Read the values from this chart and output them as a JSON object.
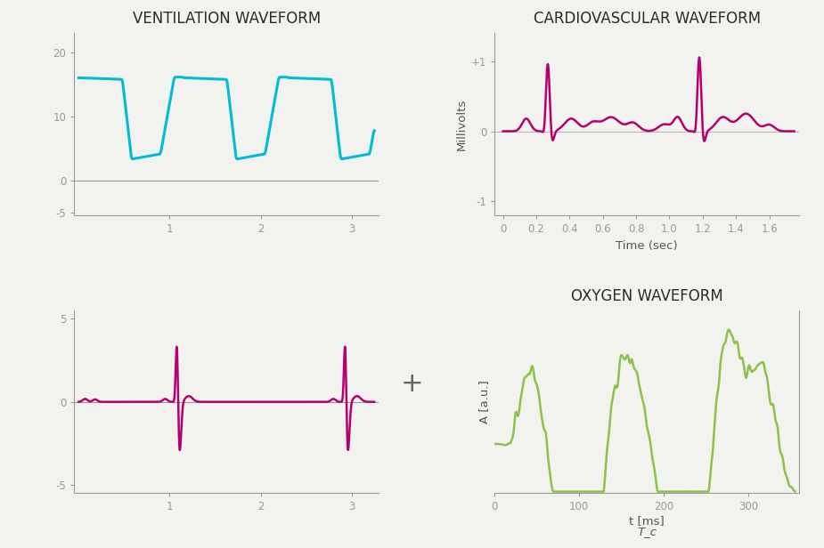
{
  "bg_color": "#f2f2ee",
  "vent_title": "VENTILATION WAVEFORM",
  "vent_color": "#00bcd4",
  "vent_ylim": [
    -5.5,
    23
  ],
  "vent_xlim": [
    -0.05,
    3.3
  ],
  "vent_yticks": [
    -5,
    0,
    10,
    20
  ],
  "vent_xticks": [
    1,
    2,
    3
  ],
  "cardio_title": "CARDIOVASCULAR WAVEFORM",
  "cardio_color": "#b5006e",
  "cardio_ylim": [
    -1.2,
    1.4
  ],
  "cardio_xlim": [
    -0.05,
    1.78
  ],
  "cardio_yticks": [
    -1,
    0,
    1
  ],
  "cardio_ytick_labels": [
    "-1",
    "0",
    "+1"
  ],
  "cardio_xticks": [
    0,
    0.2,
    0.4,
    0.6,
    0.8,
    1.0,
    1.2,
    1.4,
    1.6
  ],
  "cardio_xlabel": "Time (sec)",
  "cardio_ylabel": "Millivolts",
  "ecg2_color": "#b5006e",
  "ecg2_ylim": [
    -5.5,
    5.5
  ],
  "ecg2_xlim": [
    -0.05,
    3.3
  ],
  "ecg2_yticks": [
    -5,
    0,
    5
  ],
  "ecg2_xticks": [
    1,
    2,
    3
  ],
  "oxy_title": "OXYGEN WAVEFORM",
  "oxy_color": "#8bc34a",
  "oxy_xlim": [
    0,
    360
  ],
  "oxy_xticks": [
    0,
    100,
    200,
    300
  ],
  "oxy_xlabel": "t [ms]",
  "oxy_xlabel2": "T_c",
  "oxy_ylabel": "A [a.u.]",
  "plus_text": "+",
  "title_fontsize": 12,
  "axis_fontsize": 9.5,
  "tick_fontsize": 8.5
}
